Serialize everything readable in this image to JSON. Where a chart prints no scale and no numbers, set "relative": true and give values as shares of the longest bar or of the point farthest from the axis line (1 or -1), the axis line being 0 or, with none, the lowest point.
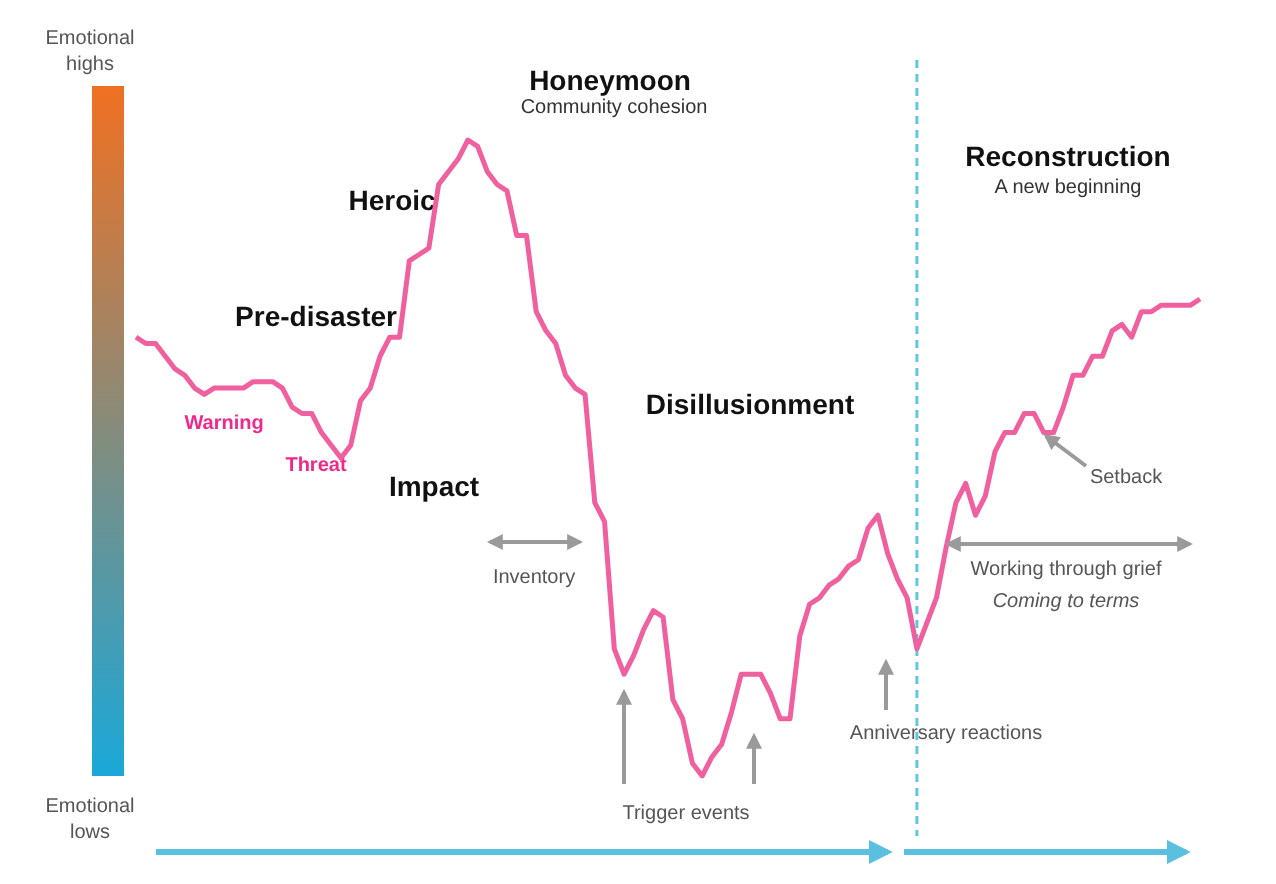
{
  "chart_data": {
    "type": "line",
    "relative": true,
    "line_style": "solid",
    "categories": [
      null,
      null,
      null,
      null,
      null,
      null,
      null,
      null,
      null,
      null,
      null,
      null,
      null,
      null,
      null,
      null,
      null,
      null,
      null,
      null,
      null,
      null,
      null,
      null,
      null,
      null,
      null,
      null,
      null,
      null,
      null,
      null,
      null,
      null,
      null,
      null,
      null,
      null,
      null,
      null,
      null,
      null,
      null,
      null,
      null,
      null,
      null,
      null,
      null,
      null,
      null,
      null,
      null,
      null,
      null,
      null,
      null,
      null,
      null,
      null,
      null,
      null,
      null,
      null,
      null,
      null,
      null,
      null,
      null,
      null,
      null,
      null,
      null,
      null,
      null,
      null,
      null,
      null,
      null,
      null,
      null,
      null,
      null,
      null,
      null,
      null,
      null,
      null,
      null,
      null,
      null,
      null,
      null,
      null,
      null,
      null,
      null,
      null,
      null,
      null,
      null,
      null,
      null,
      null,
      null,
      null,
      null,
      null,
      null,
      null
    ],
    "series": [
      {
        "color": "#f0609e",
        "values": [
          0.69,
          0.68,
          0.68,
          0.66,
          0.64,
          0.63,
          0.61,
          0.6,
          0.61,
          0.61,
          0.61,
          0.61,
          0.62,
          0.62,
          0.62,
          0.61,
          0.58,
          0.57,
          0.57,
          0.54,
          0.52,
          0.5,
          0.52,
          0.59,
          0.61,
          0.66,
          0.69,
          0.69,
          0.81,
          0.82,
          0.83,
          0.93,
          0.95,
          0.97,
          1,
          0.99,
          0.95,
          0.93,
          0.92,
          0.85,
          0.85,
          0.73,
          0.7,
          0.68,
          0.63,
          0.61,
          0.6,
          0.43,
          0.4,
          0.2,
          0.16,
          0.19,
          0.23,
          0.26,
          0.25,
          0.12,
          0.09,
          0.02,
          0,
          0.03,
          0.05,
          0.1,
          0.16,
          0.16,
          0.16,
          0.13,
          0.09,
          0.09,
          0.22,
          0.27,
          0.28,
          0.3,
          0.31,
          0.33,
          0.34,
          0.39,
          0.41,
          0.35,
          0.31,
          0.28,
          0.2,
          0.24,
          0.28,
          0.36,
          0.43,
          0.46,
          0.41,
          0.44,
          0.51,
          0.54,
          0.54,
          0.57,
          0.57,
          0.54,
          0.54,
          0.58,
          0.63,
          0.63,
          0.66,
          0.66,
          0.7,
          0.71,
          0.69,
          0.73,
          0.73,
          0.74,
          0.74,
          0.74,
          0.74,
          0.75
        ]
      }
    ],
    "annotations": [
      "Honeymoon",
      "Community cohesion",
      "Heroic",
      "Pre-disaster",
      "Warning",
      "Threat",
      "Impact",
      "Disillusionment",
      "Inventory",
      "Trigger events",
      "Anniversary reactions",
      "Reconstruction",
      "A new beginning",
      "Setback",
      "Working through grief",
      "Coming to terms",
      "Emotional\nhighs",
      "Emotional\nlows"
    ]
  }
}
